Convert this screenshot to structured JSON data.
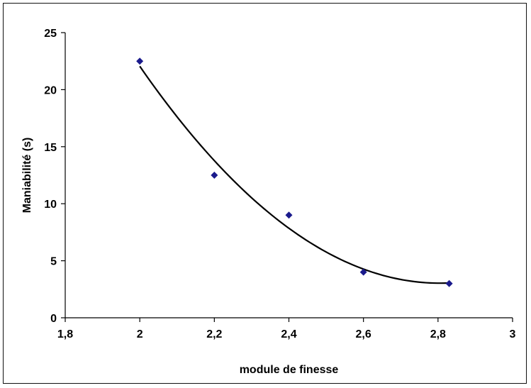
{
  "chart_data": {
    "type": "scatter",
    "xlabel": "module de finesse",
    "ylabel": "Maniabilité (s)",
    "xlim": [
      1.8,
      3
    ],
    "ylim": [
      0,
      25
    ],
    "x_ticks": [
      "1,8",
      "2",
      "2,2",
      "2,4",
      "2,6",
      "2,8",
      "3"
    ],
    "y_ticks": [
      "0",
      "5",
      "10",
      "15",
      "20",
      "25"
    ],
    "x_tick_values": [
      1.8,
      2.0,
      2.2,
      2.4,
      2.6,
      2.8,
      3.0
    ],
    "y_tick_values": [
      0,
      5,
      10,
      15,
      20,
      25
    ],
    "grid": false,
    "legend": "none",
    "series": [
      {
        "marker": "diamond",
        "color": "#1a1a8c",
        "points": [
          {
            "x": 2.0,
            "y": 22.5
          },
          {
            "x": 2.2,
            "y": 12.5
          },
          {
            "x": 2.4,
            "y": 9.0
          },
          {
            "x": 2.6,
            "y": 4.0
          },
          {
            "x": 2.83,
            "y": 3.0
          }
        ]
      }
    ],
    "trendline": {
      "type": "polynomial",
      "order": 2,
      "color": "#000000",
      "x_range": [
        2.0,
        2.83
      ]
    }
  }
}
